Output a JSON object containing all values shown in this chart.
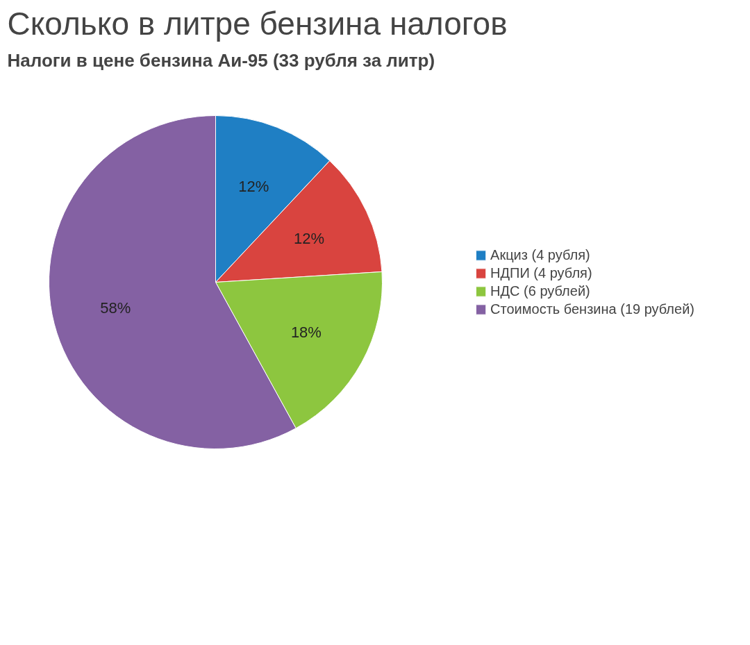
{
  "chart_data": {
    "type": "pie",
    "title": "Сколько в литре бензина налогов",
    "subtitle": "Налоги в цене бензина Аи-95 (33 рубля за литр)",
    "categories": [
      "Акциз (4 рубля)",
      "НДПИ (4 рубля)",
      "НДС (6 рублей)",
      "Стоимость бензина (19 рублей)"
    ],
    "values": [
      12,
      12,
      18,
      58
    ],
    "value_labels": [
      "12%",
      "12%",
      "18%",
      "58%"
    ],
    "colors": [
      "#1f7fc4",
      "#d9443f",
      "#8dc63f",
      "#8461a3"
    ],
    "legend": "right"
  }
}
